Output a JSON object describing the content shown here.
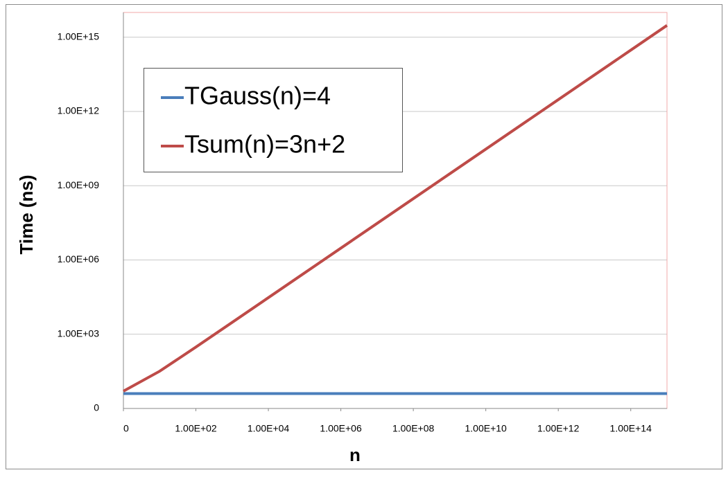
{
  "chart_data": {
    "type": "line",
    "x_label": "n",
    "y_label": "Time (ns)",
    "x": [
      1,
      10,
      100,
      1000,
      10000,
      100000,
      1000000,
      10000000,
      100000000,
      1000000000,
      10000000000,
      100000000000,
      1000000000000,
      10000000000000,
      100000000000000,
      1000000000000000
    ],
    "series": [
      {
        "name": "TGauss(n)=4",
        "color": "#4a7ebb",
        "values": [
          4,
          4,
          4,
          4,
          4,
          4,
          4,
          4,
          4,
          4,
          4,
          4,
          4,
          4,
          4,
          4
        ]
      },
      {
        "name": "Tsum(n)=3n+2",
        "color": "#be4b48",
        "values": [
          5,
          32,
          302,
          3002,
          30002,
          300002,
          3000002,
          30000002,
          300000002,
          3000000002,
          30000000002,
          300000000002,
          3000000000002,
          30000000000002,
          300000000000002,
          3000000000000002
        ]
      }
    ],
    "xlog": true,
    "ylog": true,
    "grid": true,
    "legend": "upper left",
    "xlim": [
      1,
      1000000000000000
    ],
    "ylim": [
      1,
      10000000000000000
    ],
    "xticks": [
      {
        "value": 1,
        "label": "0"
      },
      {
        "value": 100,
        "label": "1.00E+02"
      },
      {
        "value": 10000,
        "label": "1.00E+04"
      },
      {
        "value": 1000000,
        "label": "1.00E+06"
      },
      {
        "value": 100000000,
        "label": "1.00E+08"
      },
      {
        "value": 10000000000,
        "label": "1.00E+10"
      },
      {
        "value": 1000000000000,
        "label": "1.00E+12"
      },
      {
        "value": 100000000000000,
        "label": "1.00E+14"
      }
    ],
    "yticks": [
      {
        "value": 1,
        "label": "0"
      },
      {
        "value": 1000,
        "label": "1.00E+03"
      },
      {
        "value": 1000000,
        "label": "1.00E+06"
      },
      {
        "value": 1000000000,
        "label": "1.00E+09"
      },
      {
        "value": 1000000000000,
        "label": "1.00E+12"
      },
      {
        "value": 1000000000000000,
        "label": "1.00E+15"
      }
    ]
  }
}
